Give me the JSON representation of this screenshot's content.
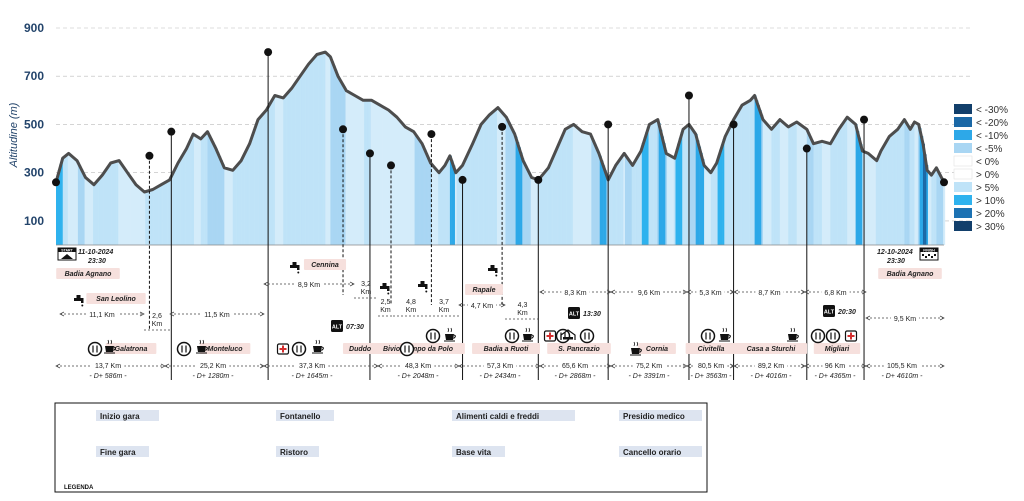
{
  "chart_data": {
    "type": "area",
    "ylabel": "Altitudine (m)",
    "yticks": [
      100,
      300,
      500,
      700,
      900
    ],
    "ylim": [
      0,
      900
    ],
    "xlim": [
      0,
      105.5
    ],
    "grid": true,
    "legend_position": "right",
    "profile": [
      [
        0,
        260
      ],
      [
        0.8,
        360
      ],
      [
        1.5,
        380
      ],
      [
        2.5,
        350
      ],
      [
        3.5,
        280
      ],
      [
        4.5,
        250
      ],
      [
        5.5,
        290
      ],
      [
        6.5,
        340
      ],
      [
        7.5,
        350
      ],
      [
        8.5,
        300
      ],
      [
        9.5,
        250
      ],
      [
        10.5,
        220
      ],
      [
        11.5,
        230
      ],
      [
        12.5,
        250
      ],
      [
        13.5,
        270
      ],
      [
        14.5,
        340
      ],
      [
        15.5,
        400
      ],
      [
        16.3,
        460
      ],
      [
        17.2,
        440
      ],
      [
        18,
        470
      ],
      [
        19,
        400
      ],
      [
        20,
        320
      ],
      [
        21,
        310
      ],
      [
        22,
        350
      ],
      [
        23,
        420
      ],
      [
        24,
        520
      ],
      [
        25,
        560
      ],
      [
        26,
        620
      ],
      [
        27,
        610
      ],
      [
        28,
        650
      ],
      [
        29,
        700
      ],
      [
        30,
        750
      ],
      [
        31,
        790
      ],
      [
        32,
        800
      ],
      [
        32.6,
        780
      ],
      [
        33.5,
        700
      ],
      [
        34.5,
        640
      ],
      [
        35.5,
        620
      ],
      [
        36.5,
        600
      ],
      [
        37.5,
        600
      ],
      [
        38.5,
        580
      ],
      [
        39.5,
        560
      ],
      [
        40.5,
        530
      ],
      [
        41.5,
        490
      ],
      [
        42.5,
        470
      ],
      [
        43.5,
        420
      ],
      [
        44.5,
        340
      ],
      [
        45.5,
        300
      ],
      [
        46.2,
        330
      ],
      [
        46.8,
        370
      ],
      [
        47.5,
        300
      ],
      [
        48.3,
        330
      ],
      [
        49.5,
        420
      ],
      [
        50.5,
        500
      ],
      [
        51.5,
        540
      ],
      [
        52.5,
        570
      ],
      [
        53.5,
        530
      ],
      [
        54.5,
        460
      ],
      [
        55.5,
        350
      ],
      [
        56.5,
        280
      ],
      [
        57.3,
        270
      ],
      [
        58.5,
        320
      ],
      [
        59.5,
        400
      ],
      [
        60.5,
        480
      ],
      [
        61.5,
        500
      ],
      [
        62.5,
        470
      ],
      [
        63.5,
        460
      ],
      [
        64.5,
        380
      ],
      [
        65.6,
        270
      ],
      [
        66.5,
        330
      ],
      [
        67.5,
        380
      ],
      [
        68.5,
        330
      ],
      [
        69.5,
        390
      ],
      [
        70.5,
        500
      ],
      [
        71.5,
        520
      ],
      [
        72.5,
        380
      ],
      [
        73.5,
        360
      ],
      [
        74.5,
        480
      ],
      [
        75.2,
        500
      ],
      [
        76,
        460
      ],
      [
        77,
        330
      ],
      [
        77.8,
        300
      ],
      [
        78.5,
        340
      ],
      [
        79.5,
        450
      ],
      [
        80.5,
        520
      ],
      [
        81.5,
        580
      ],
      [
        82.5,
        600
      ],
      [
        83,
        620
      ],
      [
        84,
        520
      ],
      [
        85,
        480
      ],
      [
        86,
        520
      ],
      [
        87,
        490
      ],
      [
        88,
        510
      ],
      [
        89.2,
        480
      ],
      [
        90,
        420
      ],
      [
        91,
        430
      ],
      [
        92,
        420
      ],
      [
        93,
        480
      ],
      [
        94,
        530
      ],
      [
        95,
        500
      ],
      [
        95.8,
        390
      ],
      [
        96.5,
        380
      ],
      [
        97.5,
        350
      ],
      [
        98,
        390
      ],
      [
        99,
        450
      ],
      [
        100,
        480
      ],
      [
        100.8,
        520
      ],
      [
        101.5,
        480
      ],
      [
        102,
        510
      ],
      [
        102.5,
        500
      ],
      [
        103,
        420
      ],
      [
        103.5,
        310
      ],
      [
        104,
        290
      ],
      [
        104.6,
        320
      ],
      [
        105.5,
        260
      ]
    ],
    "checkpoints": [
      {
        "km": 0,
        "alt": 260
      },
      {
        "km": 11.1,
        "alt": 370
      },
      {
        "km": 13.7,
        "alt": 470
      },
      {
        "km": 25.2,
        "alt": 800
      },
      {
        "km": 34.1,
        "alt": 480
      },
      {
        "km": 37.3,
        "alt": 380
      },
      {
        "km": 39.8,
        "alt": 330
      },
      {
        "km": 44.6,
        "alt": 460
      },
      {
        "km": 48.3,
        "alt": 270
      },
      {
        "km": 53.0,
        "alt": 490
      },
      {
        "km": 57.3,
        "alt": 270
      },
      {
        "km": 65.6,
        "alt": 500
      },
      {
        "km": 75.2,
        "alt": 620
      },
      {
        "km": 80.5,
        "alt": 500
      },
      {
        "km": 89.2,
        "alt": 400
      },
      {
        "km": 96,
        "alt": 520
      },
      {
        "km": 105.5,
        "alt": 260
      }
    ],
    "slope_legend": [
      "< -30%",
      "< -20%",
      "< -10%",
      "< -5%",
      "< 0%",
      "> 0%",
      "> 5%",
      "> 10%",
      "> 20%",
      "> 30%"
    ],
    "slope_colors": [
      "#123f6b",
      "#1b68a6",
      "#2da8e8",
      "#a9d6f3",
      "#ffffff",
      "#ffffff",
      "#bfe3f8",
      "#2eb2ee",
      "#1c72b3",
      "#123f6b"
    ]
  },
  "start": {
    "badge": "START",
    "date": "11-10-2024",
    "time": "23:30",
    "name": "Badia Agnano"
  },
  "finish": {
    "badge": "FINISH",
    "date": "12-10-2024",
    "time": "23:30",
    "name": "Badia Agnano"
  },
  "places": [
    {
      "name": "San Leolino"
    },
    {
      "name": "Galatrona"
    },
    {
      "name": "Monteluco"
    },
    {
      "name": "Cennina"
    },
    {
      "name": "Duddova"
    },
    {
      "name": "Bivio Campo da Polo"
    },
    {
      "name": "Rapale"
    },
    {
      "name": "Badia a Ruoti"
    },
    {
      "name": "S. Pancrazio"
    },
    {
      "name": "Cornia"
    },
    {
      "name": "Civitella"
    },
    {
      "name": "Casa a Sturchi"
    },
    {
      "name": "Migliari"
    }
  ],
  "segments": [
    "11,1 Km",
    "2,6\nKm",
    "11,5 Km",
    "8,9 Km",
    "3,2\nKm",
    "2,5\nKm",
    "4,8\nKm",
    "3,7\nKm",
    "4,7 Km",
    "4,3\nKm",
    "8,3 Km",
    "9,6 Km",
    "5,3 Km",
    "8,7 Km",
    "6,8 Km",
    "9,5 Km"
  ],
  "cutoffs": [
    {
      "badge": "ALT",
      "time": "07:30"
    },
    {
      "badge": "ALT",
      "time": "13:30"
    },
    {
      "badge": "ALT",
      "time": "20:30"
    }
  ],
  "totals": [
    {
      "km": "13,7 Km",
      "dplus": "- D+ 586m -"
    },
    {
      "km": "25,2 Km",
      "dplus": "- D+ 1280m -"
    },
    {
      "km": "37,3 Km",
      "dplus": "- D+ 1645m -"
    },
    {
      "km": "48,3 Km",
      "dplus": "- D+ 2048m -"
    },
    {
      "km": "57,3 Km",
      "dplus": "- D+ 2434m -"
    },
    {
      "km": "65,6 Km",
      "dplus": "- D+ 2868m -"
    },
    {
      "km": "75,2 Km",
      "dplus": "- D+ 3391m -"
    },
    {
      "km": "80,5 Km",
      "dplus": "- D+ 3563m -"
    },
    {
      "km": "89,2 Km",
      "dplus": "- D+ 4016m -"
    },
    {
      "km": "96 Km",
      "dplus": "- D+ 4365m -"
    },
    {
      "km": "105,5 Km",
      "dplus": "- D+ 4610m -"
    }
  ],
  "legend": {
    "title": "LEGENDA",
    "items": [
      {
        "icon": "start-icon",
        "label": "Inizio gara"
      },
      {
        "icon": "tap-icon",
        "label": "Fontanello"
      },
      {
        "icon": "cup-icon",
        "label": "Alimenti caldi e freddi"
      },
      {
        "icon": "medical-icon",
        "label": "Presidio medico"
      },
      {
        "icon": "finish-icon",
        "label": "Fine gara"
      },
      {
        "icon": "refreshment-icon",
        "label": "Ristoro"
      },
      {
        "icon": "bed-icon",
        "label": "Base vita"
      },
      {
        "icon": "cutoff-icon",
        "label": "Cancello orario"
      }
    ]
  }
}
